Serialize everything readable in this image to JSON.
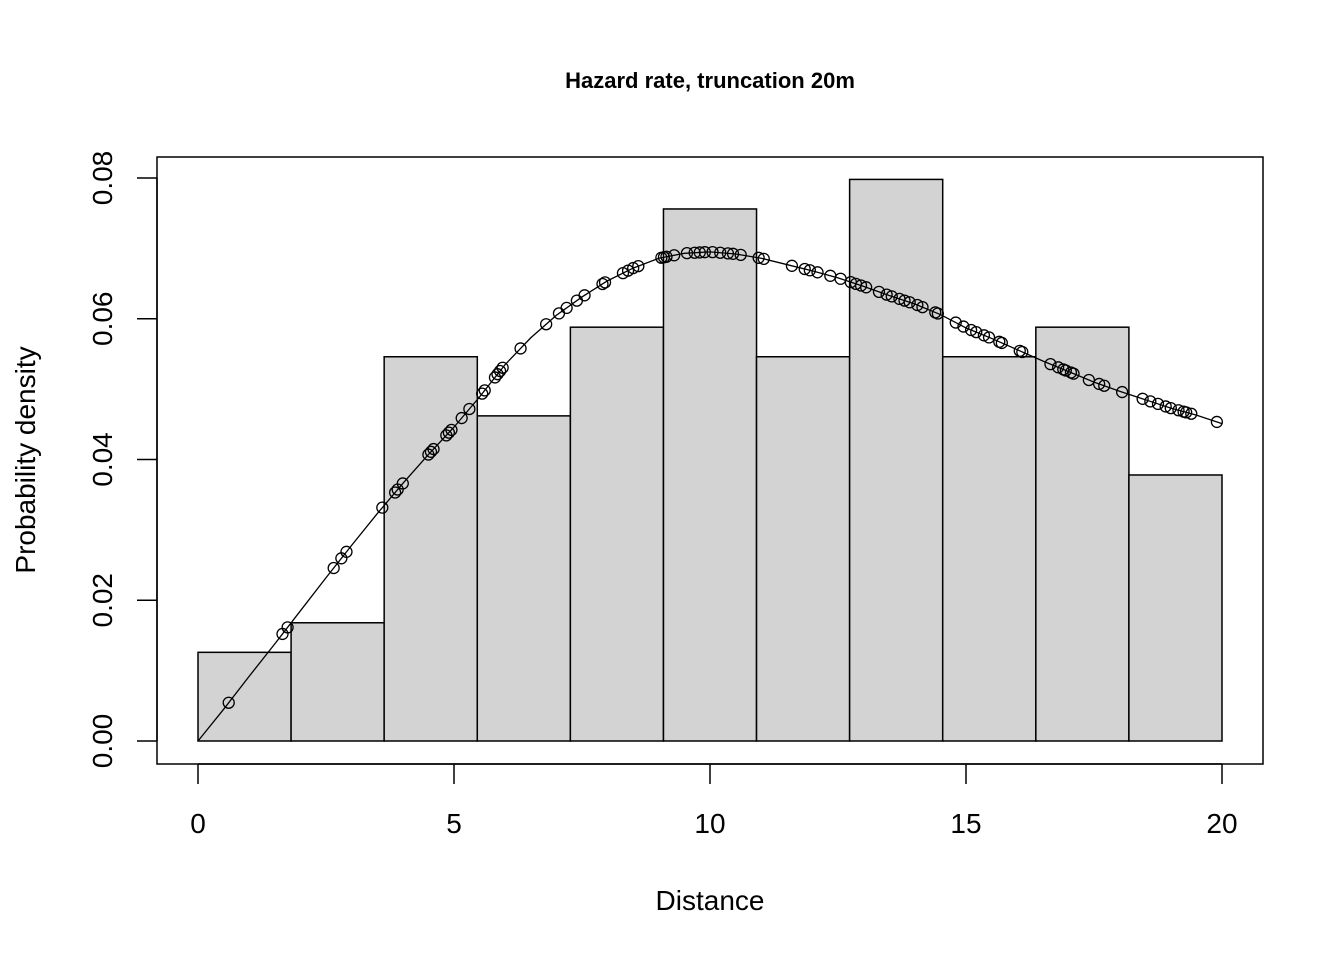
{
  "chart_data": {
    "type": "bar",
    "title": "Hazard rate, truncation 20m",
    "xlabel": "Distance",
    "ylabel": "Probability density",
    "xlim": [
      0,
      20
    ],
    "ylim": [
      0,
      0.08
    ],
    "x_ticks": [
      "0",
      "5",
      "10",
      "15",
      "20"
    ],
    "y_ticks": [
      "0.00",
      "0.02",
      "0.04",
      "0.06",
      "0.08"
    ],
    "grid": false,
    "histogram": {
      "bin_edges": [
        0,
        1.818,
        3.636,
        5.455,
        7.273,
        9.091,
        10.909,
        12.727,
        14.545,
        16.364,
        18.182,
        20
      ],
      "values": [
        0.0126,
        0.0168,
        0.0546,
        0.0462,
        0.0588,
        0.0756,
        0.0546,
        0.0798,
        0.0546,
        0.0588,
        0.0378
      ],
      "fill_color": "#d3d3d3",
      "edge_color": "#000000"
    },
    "fitted_curve": {
      "name": "",
      "x": [
        0,
        0.5,
        1,
        1.5,
        2,
        2.5,
        3,
        3.5,
        4,
        4.5,
        5,
        5.5,
        6,
        6.5,
        7,
        7.5,
        8,
        8.5,
        9,
        9.5,
        10,
        10.5,
        11,
        11.5,
        12,
        12.5,
        13,
        13.5,
        14,
        14.5,
        15,
        15.5,
        16,
        16.5,
        17,
        17.5,
        18,
        18.5,
        19,
        19.5,
        20
      ],
      "y": [
        0.0,
        0.0045,
        0.0092,
        0.0138,
        0.0185,
        0.0232,
        0.0278,
        0.0323,
        0.0366,
        0.0407,
        0.0446,
        0.0489,
        0.0535,
        0.0573,
        0.0605,
        0.0631,
        0.0654,
        0.0672,
        0.0686,
        0.0693,
        0.0695,
        0.0692,
        0.0686,
        0.0677,
        0.0668,
        0.0658,
        0.0646,
        0.0633,
        0.0621,
        0.0606,
        0.0587,
        0.0572,
        0.0556,
        0.054,
        0.0525,
        0.051,
        0.0497,
        0.0485,
        0.0473,
        0.0463,
        0.0451
      ]
    },
    "observations_x": [
      0.6,
      1.65,
      1.75,
      2.65,
      2.8,
      2.9,
      3.6,
      3.85,
      3.9,
      4.0,
      4.5,
      4.55,
      4.6,
      4.85,
      4.9,
      4.95,
      5.15,
      5.3,
      5.55,
      5.6,
      5.8,
      5.85,
      5.9,
      5.95,
      6.3,
      6.8,
      7.05,
      7.2,
      7.4,
      7.55,
      7.9,
      7.95,
      8.3,
      8.4,
      8.5,
      8.6,
      9.05,
      9.1,
      9.15,
      9.3,
      9.55,
      9.7,
      9.8,
      9.9,
      10.05,
      10.2,
      10.35,
      10.45,
      10.6,
      10.95,
      11.05,
      11.6,
      11.85,
      11.95,
      12.1,
      12.35,
      12.55,
      12.75,
      12.85,
      12.95,
      13.05,
      13.3,
      13.45,
      13.55,
      13.7,
      13.8,
      13.9,
      14.05,
      14.15,
      14.4,
      14.45,
      14.8,
      14.95,
      15.1,
      15.2,
      15.35,
      15.45,
      15.65,
      15.7,
      16.05,
      16.1,
      16.65,
      16.8,
      16.9,
      16.95,
      17.05,
      17.1,
      17.4,
      17.6,
      17.7,
      18.05,
      18.45,
      18.6,
      18.75,
      18.9,
      19.0,
      19.15,
      19.25,
      19.3,
      19.4,
      19.9
    ]
  }
}
